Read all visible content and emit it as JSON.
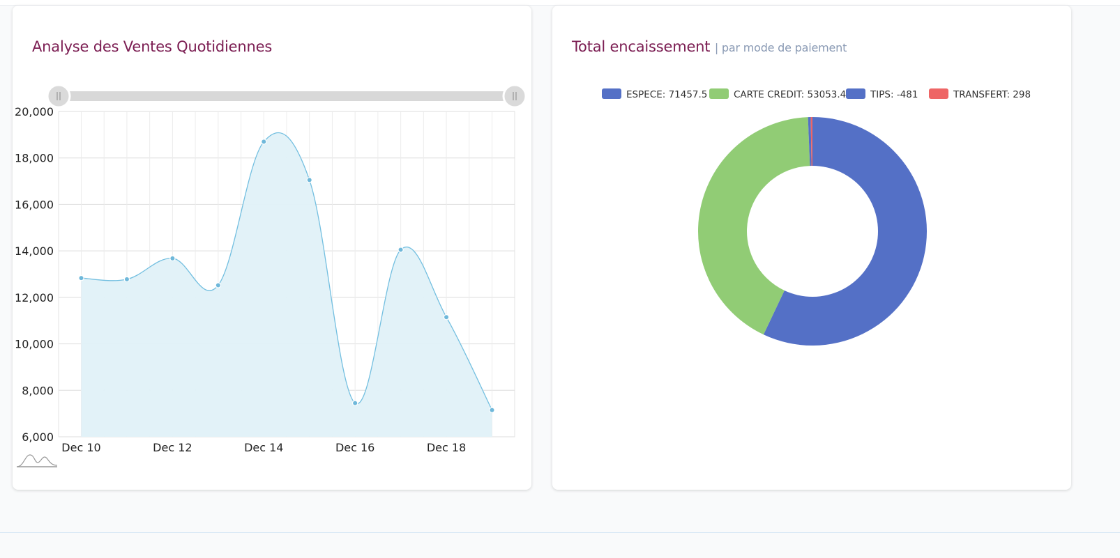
{
  "line_card": {
    "title": "Analyse des Ventes Quotidiennes"
  },
  "donut_card": {
    "title": "Total encaissement",
    "subtitle": "| par mode de paiement"
  },
  "chart_data": [
    {
      "type": "area",
      "title": "Analyse des Ventes Quotidiennes",
      "x": [
        "2023-12-10",
        "2023-12-11",
        "2023-12-12",
        "2023-12-13",
        "2023-12-14",
        "2023-12-15",
        "2023-12-16",
        "2023-12-17",
        "2023-12-18",
        "2023-12-19"
      ],
      "xtick_labels": [
        "Dec 10",
        "Dec 12",
        "Dec 14",
        "Dec 16",
        "Dec 18"
      ],
      "xtick_dates": [
        "2023-12-10",
        "2023-12-12",
        "2023-12-14",
        "2023-12-16",
        "2023-12-18"
      ],
      "values": [
        12830,
        12780,
        13680,
        12520,
        18700,
        17050,
        7450,
        14050,
        11150,
        7150
      ],
      "ylim": [
        6000,
        20000
      ],
      "ytick_labels": [
        "6,000",
        "8,000",
        "10,000",
        "12,000",
        "14,000",
        "16,000",
        "18,000",
        "20,000"
      ],
      "ytick_values": [
        6000,
        8000,
        10000,
        12000,
        14000,
        16000,
        18000,
        20000
      ],
      "grid": true,
      "colors": {
        "line": "#73bfe0",
        "fill": "#e0f1f8",
        "point": "#6fb8da"
      },
      "range_slider": true
    },
    {
      "type": "pie",
      "title": "Total encaissement",
      "subtitle": "| par mode de paiement",
      "donut": true,
      "legend_position": "top",
      "slices": [
        {
          "label": "ESPECE: 71457.5",
          "value": 71457.5,
          "color": "#5470c6"
        },
        {
          "label": "CARTE CREDIT: 53053.4",
          "value": 53053.4,
          "color": "#91cc75"
        },
        {
          "label": "TIPS: -481",
          "value": -481,
          "color": "#5470c6"
        },
        {
          "label": "TRANSFERT: 298",
          "value": 298,
          "color": "#ee6666"
        }
      ]
    }
  ]
}
